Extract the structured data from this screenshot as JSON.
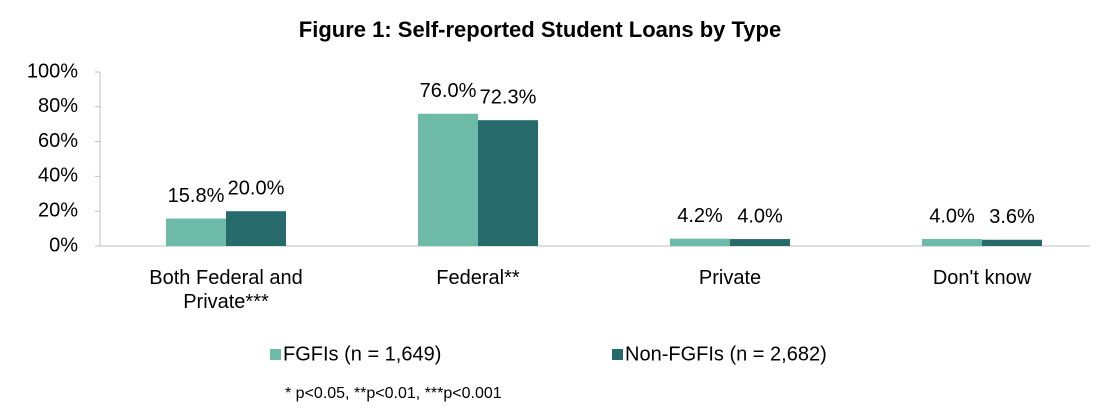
{
  "chart_data": {
    "type": "bar",
    "title": "Figure 1: Self-reported Student Loans by Type",
    "categories": [
      "Both Federal and Private***",
      "Federal**",
      "Private",
      "Don't know"
    ],
    "series": [
      {
        "name": "FGFIs (n = 1,649)",
        "color": "#6dbaa8",
        "values": [
          15.8,
          76.0,
          4.2,
          4.0
        ],
        "value_labels": [
          "15.8%",
          "76.0%",
          "4.2%",
          "4.0%"
        ]
      },
      {
        "name": "Non-FGFIs (n = 2,682)",
        "color": "#276a6b",
        "values": [
          20.0,
          72.3,
          4.0,
          3.6
        ],
        "value_labels": [
          "20.0%",
          "72.3%",
          "4.0%",
          "3.6%"
        ]
      }
    ],
    "ylim": [
      0,
      100
    ],
    "yticks": [
      {
        "value": 0,
        "label": "0%"
      },
      {
        "value": 20,
        "label": "20%"
      },
      {
        "value": 40,
        "label": "40%"
      },
      {
        "value": 60,
        "label": "60%"
      },
      {
        "value": 80,
        "label": "80%"
      },
      {
        "value": 100,
        "label": "100%"
      }
    ],
    "grid": false,
    "legend": "bottom",
    "footnote": "* p<0.05, **p<0.01, ***p<0.001"
  }
}
